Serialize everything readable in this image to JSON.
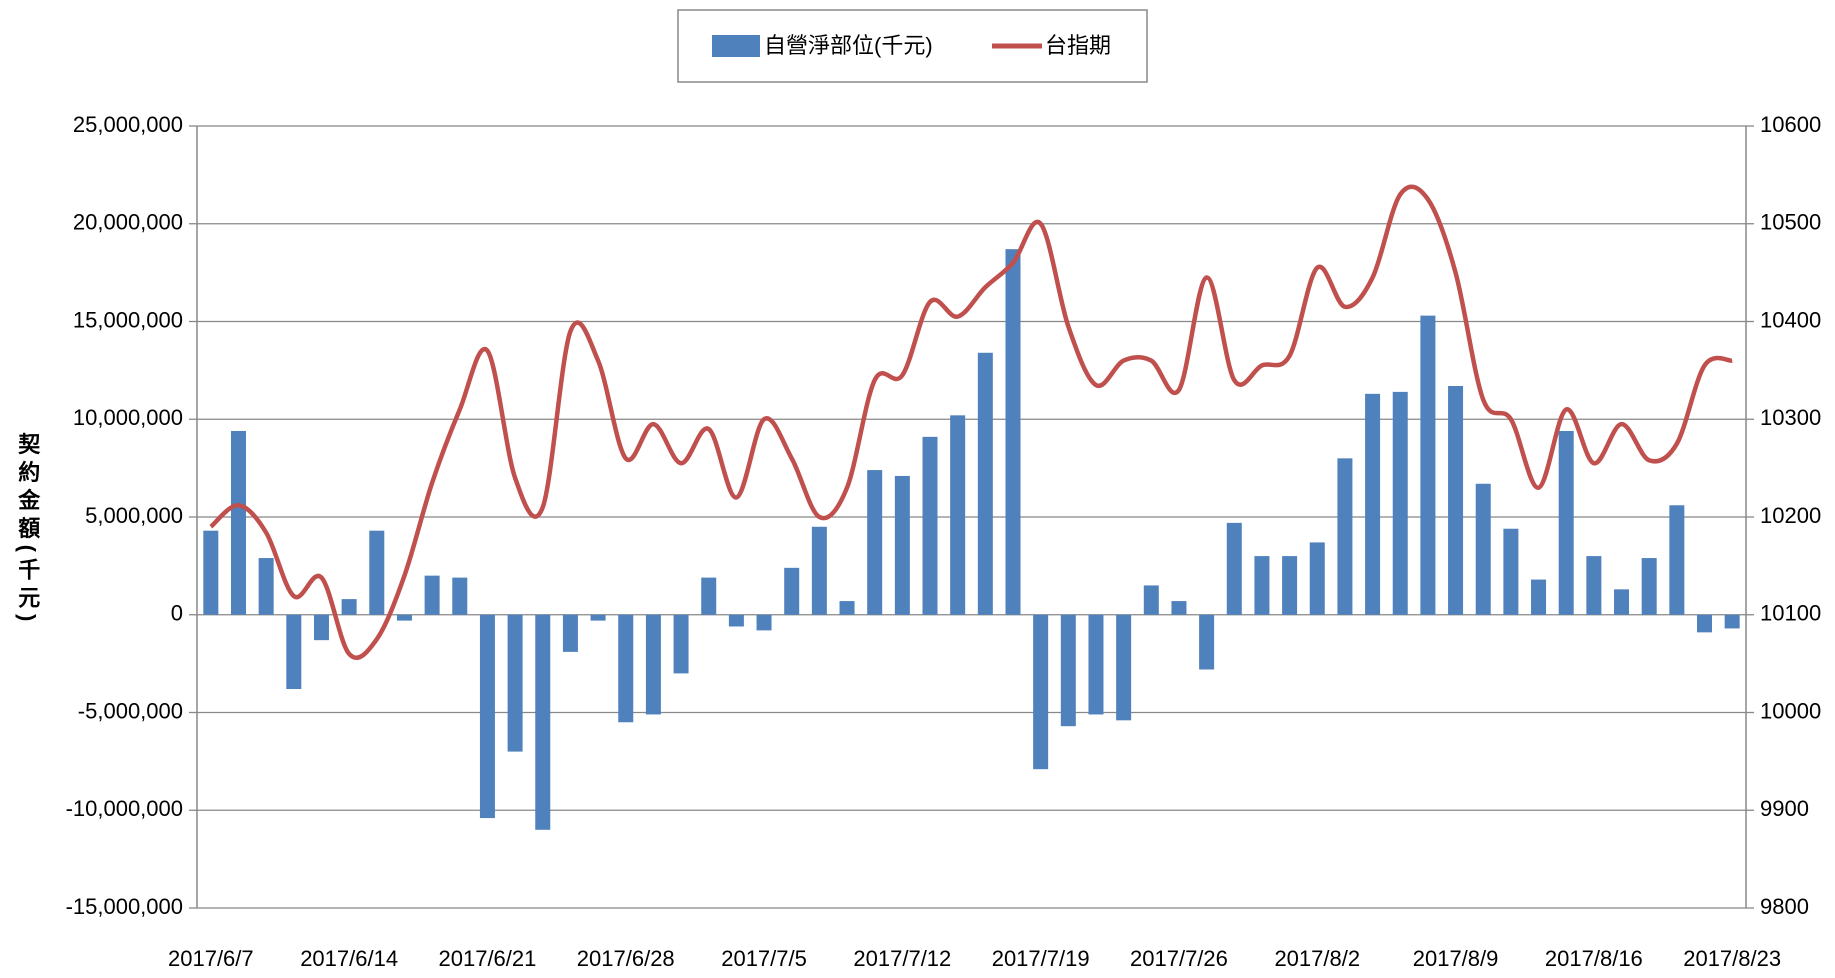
{
  "chart_data": {
    "type": "bar-line",
    "y_axis_label": "契約金額(千元)",
    "categories": [
      "2017/6/7",
      null,
      null,
      null,
      null,
      "2017/6/14",
      null,
      null,
      null,
      null,
      "2017/6/21",
      null,
      null,
      null,
      null,
      "2017/6/28",
      null,
      null,
      null,
      null,
      "2017/7/5",
      null,
      null,
      null,
      null,
      "2017/7/12",
      null,
      null,
      null,
      null,
      "2017/7/19",
      null,
      null,
      null,
      null,
      "2017/7/26",
      null,
      null,
      null,
      null,
      "2017/8/2",
      null,
      null,
      null,
      null,
      "2017/8/9",
      null,
      null,
      null,
      null,
      "2017/8/16",
      null,
      null,
      null,
      null,
      "2017/8/23"
    ],
    "series": [
      {
        "name": "自營淨部位(千元)",
        "type": "bar",
        "color": "#4f81bd",
        "values": [
          4300000,
          9400000,
          2900000,
          -3800000,
          -1300000,
          800000,
          4300000,
          -300000,
          2000000,
          1900000,
          -10400000,
          -7000000,
          -11000000,
          -1900000,
          -300000,
          -5500000,
          -5100000,
          -3000000,
          1900000,
          -600000,
          -800000,
          2400000,
          4500000,
          700000,
          7400000,
          7100000,
          9100000,
          10200000,
          13400000,
          18700000,
          -7900000,
          -5700000,
          -5100000,
          -5400000,
          1500000,
          700000,
          -2800000,
          4700000,
          3000000,
          3000000,
          3700000,
          8000000,
          11300000,
          11400000,
          15300000,
          11700000,
          6700000,
          4400000,
          1800000,
          9400000,
          3000000,
          1300000,
          2900000,
          5600000,
          -900000,
          -700000
        ]
      },
      {
        "name": "台指期",
        "type": "line",
        "axis": "y2",
        "color": "#c0504d",
        "values": [
          10190,
          10212,
          10184,
          10119,
          10138,
          10060,
          10075,
          10140,
          10235,
          10310,
          10370,
          10240,
          10210,
          10390,
          10360,
          10260,
          10295,
          10255,
          10290,
          10220,
          10300,
          10260,
          10200,
          10230,
          10340,
          10345,
          10420,
          10405,
          10435,
          10460,
          10500,
          10395,
          10335,
          10360,
          10360,
          10330,
          10445,
          10340,
          10355,
          10365,
          10455,
          10415,
          10445,
          10530,
          10525,
          10450,
          10320,
          10300,
          10230,
          10310,
          10255,
          10295,
          10258,
          10275,
          10355,
          10360
        ]
      }
    ],
    "ylim": [
      -15000000,
      25000000
    ],
    "yticks": [
      {
        "value": -15000000,
        "label": "-15,000,000"
      },
      {
        "value": -10000000,
        "label": "-10,000,000"
      },
      {
        "value": -5000000,
        "label": "-5,000,000"
      },
      0,
      {
        "value": 5000000,
        "label": "5,000,000"
      },
      {
        "value": 10000000,
        "label": "10,000,000"
      },
      {
        "value": 15000000,
        "label": "15,000,000"
      },
      {
        "value": 20000000,
        "label": "20,000,000"
      },
      {
        "value": 25000000,
        "label": "25,000,000"
      }
    ],
    "y2lim": [
      9800,
      10600
    ],
    "y2ticks": [
      9800,
      9900,
      10000,
      10100,
      10200,
      10300,
      10400,
      10500,
      10600
    ],
    "grid": true,
    "legend": "top"
  }
}
